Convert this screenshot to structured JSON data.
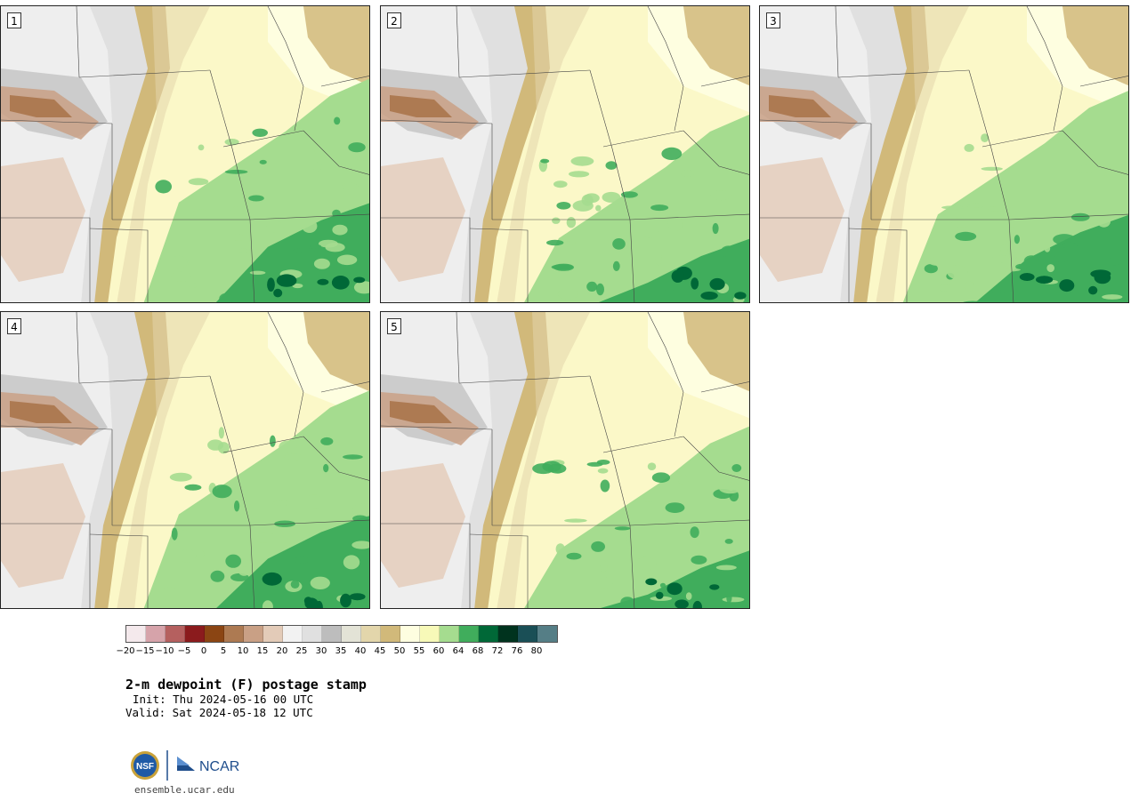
{
  "panels": [
    {
      "label": "1"
    },
    {
      "label": "2"
    },
    {
      "label": "3"
    },
    {
      "label": "4"
    },
    {
      "label": "5"
    }
  ],
  "legend": {
    "colors": [
      "#f4e9ec",
      "#d6a3aa",
      "#b5605f",
      "#8b1b1d",
      "#8b4513",
      "#ad7a52",
      "#c9a085",
      "#e3cbb8",
      "#f2f2f2",
      "#e0e0e0",
      "#bdbdbd",
      "#e3e3d6",
      "#e3d6ab",
      "#d1b97a",
      "#fefee0",
      "#f7f9b8",
      "#a5dc8f",
      "#40ad5c",
      "#006837",
      "#00331e",
      "#1a4f56",
      "#557e86"
    ],
    "ticks": [
      "−20",
      "−15",
      "−10",
      "−5",
      "0",
      "5",
      "10",
      "15",
      "20",
      "25",
      "30",
      "35",
      "40",
      "45",
      "50",
      "55",
      "60",
      "64",
      "68",
      "72",
      "76",
      "80"
    ]
  },
  "title": "2-m dewpoint (F) postage stamp",
  "init": "Init: Thu 2024-05-16 00 UTC",
  "valid": "Valid: Sat 2024-05-18 12 UTC",
  "logos": {
    "nsf": "NSF",
    "ncar": "NCAR"
  },
  "site": "ensemble.ucar.edu"
}
